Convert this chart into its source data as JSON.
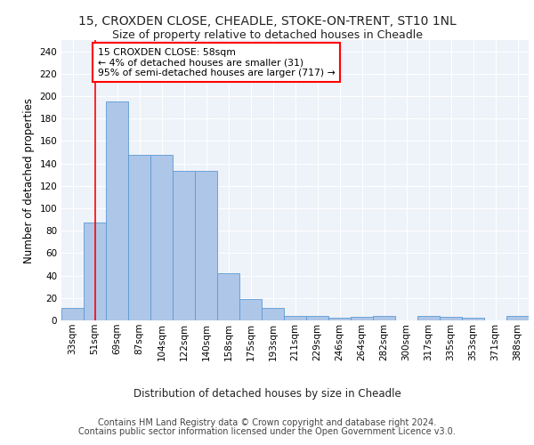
{
  "title1": "15, CROXDEN CLOSE, CHEADLE, STOKE-ON-TRENT, ST10 1NL",
  "title2": "Size of property relative to detached houses in Cheadle",
  "xlabel": "Distribution of detached houses by size in Cheadle",
  "ylabel": "Number of detached properties",
  "categories": [
    "33sqm",
    "51sqm",
    "69sqm",
    "87sqm",
    "104sqm",
    "122sqm",
    "140sqm",
    "158sqm",
    "175sqm",
    "193sqm",
    "211sqm",
    "229sqm",
    "246sqm",
    "264sqm",
    "282sqm",
    "300sqm",
    "317sqm",
    "335sqm",
    "353sqm",
    "371sqm",
    "388sqm"
  ],
  "values": [
    11,
    87,
    195,
    148,
    148,
    133,
    133,
    42,
    19,
    11,
    4,
    4,
    2,
    3,
    4,
    0,
    4,
    3,
    2,
    0,
    4
  ],
  "bar_color": "#aec6e8",
  "bar_edge_color": "#5b9bd5",
  "red_line_x": 1.0,
  "ylim": [
    0,
    250
  ],
  "yticks": [
    0,
    20,
    40,
    60,
    80,
    100,
    120,
    140,
    160,
    180,
    200,
    220,
    240
  ],
  "annotation_text": "15 CROXDEN CLOSE: 58sqm\n← 4% of detached houses are smaller (31)\n95% of semi-detached houses are larger (717) →",
  "footnote1": "Contains HM Land Registry data © Crown copyright and database right 2024.",
  "footnote2": "Contains public sector information licensed under the Open Government Licence v3.0.",
  "bg_color": "#eef2f9",
  "grid_color": "#ffffff",
  "title1_fontsize": 10,
  "title2_fontsize": 9,
  "axis_label_fontsize": 8.5,
  "tick_fontsize": 7.5,
  "footnote_fontsize": 7
}
